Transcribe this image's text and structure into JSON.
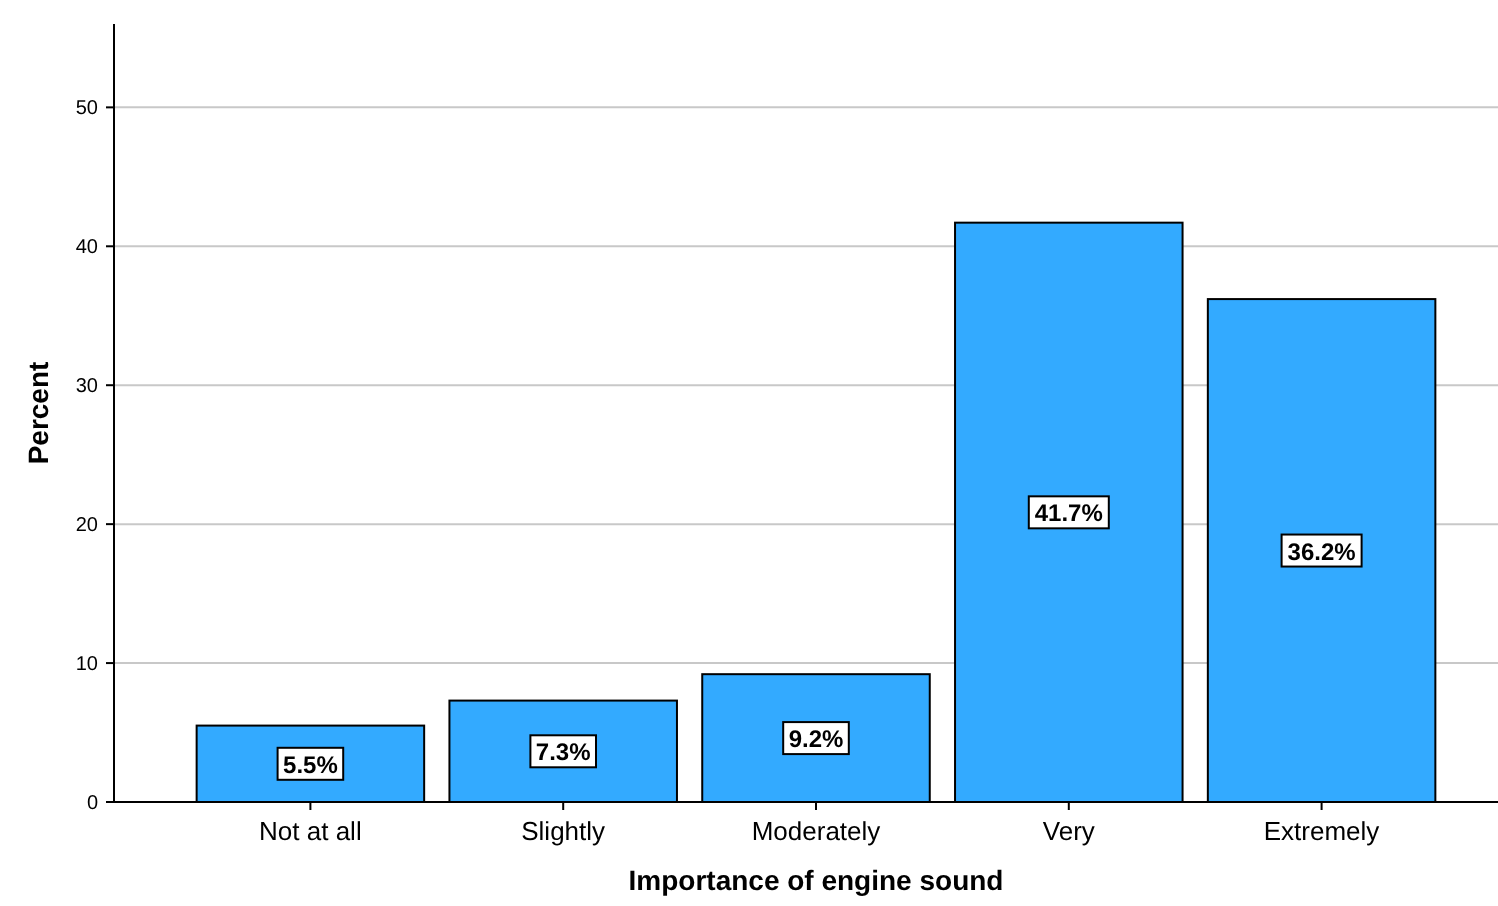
{
  "chart_data": {
    "type": "bar",
    "xlabel": "Importance of engine sound",
    "ylabel": "Percent",
    "categories": [
      "Not at all",
      "Slightly",
      "Moderately",
      "Very",
      "Extremely"
    ],
    "values": [
      5.5,
      7.3,
      9.2,
      41.7,
      36.2
    ],
    "value_labels": [
      "5.5%",
      "7.3%",
      "9.2%",
      "41.7%",
      "36.2%"
    ],
    "color": "#33aaff",
    "ylim": [
      0,
      56
    ],
    "yticks": [
      0,
      10,
      20,
      30,
      40,
      50
    ],
    "grid": "y"
  }
}
